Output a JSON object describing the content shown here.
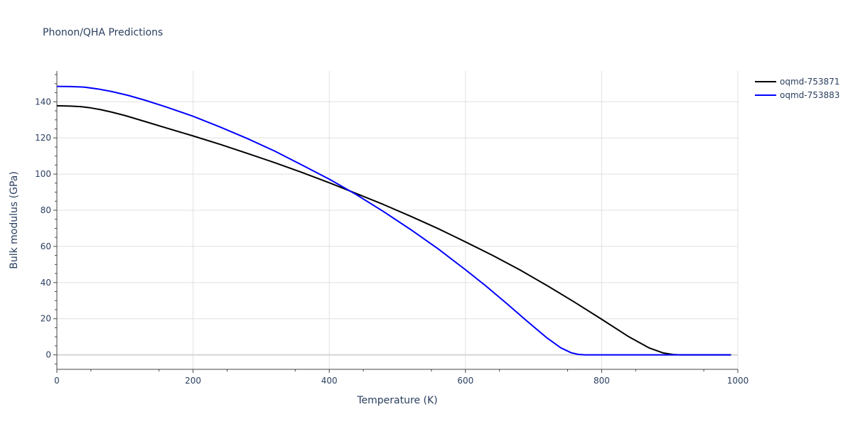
{
  "chart_data": {
    "type": "line",
    "title": "Phonon/QHA Predictions",
    "xlabel": "Temperature (K)",
    "ylabel": "Bulk modulus (GPa)",
    "xlim": [
      0,
      1000
    ],
    "ylim": [
      -8,
      157
    ],
    "x_ticks": [
      0,
      200,
      400,
      600,
      800,
      1000
    ],
    "y_ticks": [
      0,
      20,
      40,
      60,
      80,
      100,
      120,
      140
    ],
    "grid": true,
    "legend_position": "top-right",
    "series": [
      {
        "name": "oqmd-753871",
        "color": "#000000",
        "x": [
          0,
          20,
          35,
          50,
          65,
          80,
          100,
          130,
          160,
          200,
          240,
          280,
          320,
          360,
          400,
          440,
          480,
          520,
          560,
          600,
          640,
          680,
          720,
          760,
          800,
          840,
          870,
          890,
          905,
          915,
          930,
          960,
          990
        ],
        "y": [
          137.8,
          137.6,
          137.3,
          136.6,
          135.6,
          134.3,
          132.4,
          129.0,
          125.6,
          121.1,
          116.4,
          111.4,
          106.3,
          100.9,
          95.2,
          89.2,
          83.1,
          76.6,
          69.8,
          62.5,
          55.0,
          47.0,
          38.3,
          29.2,
          19.7,
          10.0,
          3.8,
          1.1,
          0.2,
          0.0,
          0.0,
          0.0,
          0.0
        ]
      },
      {
        "name": "oqmd-753883",
        "color": "#0000ff",
        "x": [
          0,
          20,
          40,
          60,
          80,
          105,
          130,
          160,
          200,
          240,
          280,
          320,
          360,
          400,
          440,
          480,
          520,
          560,
          600,
          630,
          660,
          690,
          720,
          740,
          755,
          765,
          775,
          785,
          800,
          850,
          900,
          950,
          990
        ],
        "y": [
          148.5,
          148.4,
          148.1,
          147.1,
          145.7,
          143.5,
          140.8,
          137.2,
          132.0,
          126.0,
          119.6,
          112.7,
          105.0,
          97.2,
          88.6,
          79.2,
          69.2,
          58.6,
          47.1,
          38.1,
          28.6,
          18.8,
          9.3,
          3.9,
          1.2,
          0.3,
          0.0,
          0.0,
          0.0,
          0.0,
          0.0,
          0.0,
          0.0
        ]
      }
    ]
  }
}
